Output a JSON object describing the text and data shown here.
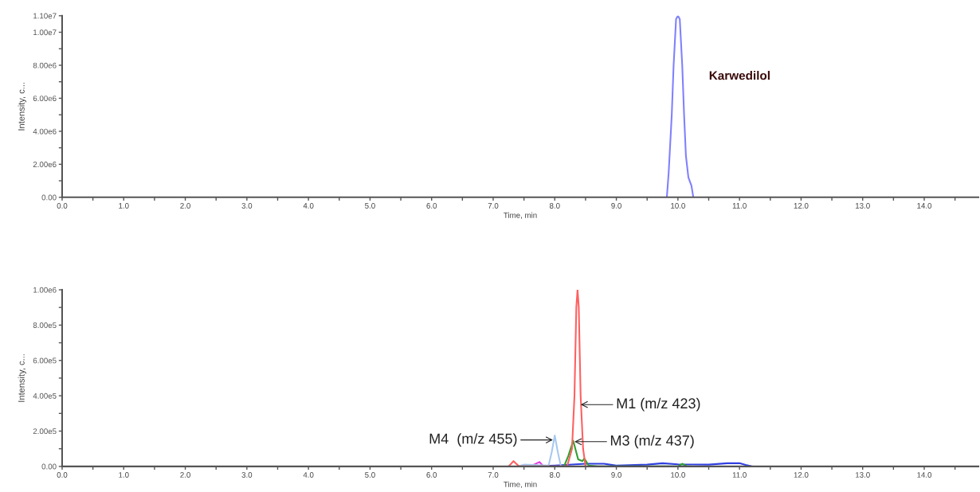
{
  "chart_data": [
    {
      "type": "line",
      "xlabel": "Time, min",
      "ylabel": "Intensity, c...",
      "xlim": [
        0,
        14.88
      ],
      "ylim": [
        0,
        11000000
      ],
      "xticks": [
        {
          "value": 0,
          "label": "0.0"
        },
        {
          "value": 0.5,
          "label": null
        },
        {
          "value": 1,
          "label": "1.0"
        },
        {
          "value": 1.5,
          "label": null
        },
        {
          "value": 2,
          "label": "2.0"
        },
        {
          "value": 2.5,
          "label": null
        },
        {
          "value": 3,
          "label": "3.0"
        },
        {
          "value": 3.5,
          "label": null
        },
        {
          "value": 4,
          "label": "4.0"
        },
        {
          "value": 4.5,
          "label": null
        },
        {
          "value": 5,
          "label": "5.0"
        },
        {
          "value": 5.5,
          "label": null
        },
        {
          "value": 6,
          "label": "6.0"
        },
        {
          "value": 6.5,
          "label": null
        },
        {
          "value": 7,
          "label": "7.0"
        },
        {
          "value": 7.5,
          "label": null
        },
        {
          "value": 8,
          "label": "8.0"
        },
        {
          "value": 8.5,
          "label": null
        },
        {
          "value": 9,
          "label": "9.0"
        },
        {
          "value": 9.5,
          "label": null
        },
        {
          "value": 10,
          "label": "10.0"
        },
        {
          "value": 10.5,
          "label": null
        },
        {
          "value": 11,
          "label": "11.0"
        },
        {
          "value": 11.5,
          "label": null
        },
        {
          "value": 12,
          "label": "12.0"
        },
        {
          "value": 12.5,
          "label": null
        },
        {
          "value": 13,
          "label": "13.0"
        },
        {
          "value": 13.5,
          "label": null
        },
        {
          "value": 14,
          "label": "14.0"
        },
        {
          "value": 14.5,
          "label": null
        }
      ],
      "yticks": [
        {
          "value": 0,
          "label": "0.00"
        },
        {
          "value": 1000000,
          "label": null
        },
        {
          "value": 2000000,
          "label": "2.00e6"
        },
        {
          "value": 3000000,
          "label": null
        },
        {
          "value": 4000000,
          "label": "4.00e6"
        },
        {
          "value": 5000000,
          "label": null
        },
        {
          "value": 6000000,
          "label": "6.00e6"
        },
        {
          "value": 7000000,
          "label": null
        },
        {
          "value": 8000000,
          "label": "8.00e6"
        },
        {
          "value": 9000000,
          "label": null
        },
        {
          "value": 10000000,
          "label": "1.00e7"
        },
        {
          "value": 11000000,
          "label": "1.10e7"
        }
      ],
      "series": [
        {
          "name": "Karwedilol",
          "color": "#8080ff",
          "x": [
            9.82,
            9.85,
            9.9,
            9.93,
            9.97,
            10.0,
            10.03,
            10.07,
            10.1,
            10.13,
            10.17,
            10.22,
            10.25
          ],
          "values": [
            0,
            1500000,
            5000000,
            8000000,
            10800000,
            11000000,
            10800000,
            8000000,
            5000000,
            2500000,
            1200000,
            700000,
            0
          ]
        }
      ]
    },
    {
      "type": "line",
      "xlabel": "Time, min",
      "ylabel": "Intensity, c...",
      "xlim": [
        0,
        14.88
      ],
      "ylim": [
        0,
        1000000
      ],
      "xticks": [
        {
          "value": 0,
          "label": "0.0"
        },
        {
          "value": 0.5,
          "label": null
        },
        {
          "value": 1,
          "label": "1.0"
        },
        {
          "value": 1.5,
          "label": null
        },
        {
          "value": 2,
          "label": "2.0"
        },
        {
          "value": 2.5,
          "label": null
        },
        {
          "value": 3,
          "label": "3.0"
        },
        {
          "value": 3.5,
          "label": null
        },
        {
          "value": 4,
          "label": "4.0"
        },
        {
          "value": 4.5,
          "label": null
        },
        {
          "value": 5,
          "label": "5.0"
        },
        {
          "value": 5.5,
          "label": null
        },
        {
          "value": 6,
          "label": "6.0"
        },
        {
          "value": 6.5,
          "label": null
        },
        {
          "value": 7,
          "label": "7.0"
        },
        {
          "value": 7.5,
          "label": null
        },
        {
          "value": 8,
          "label": "8.0"
        },
        {
          "value": 8.5,
          "label": null
        },
        {
          "value": 9,
          "label": "9.0"
        },
        {
          "value": 9.5,
          "label": null
        },
        {
          "value": 10,
          "label": "10.0"
        },
        {
          "value": 10.5,
          "label": null
        },
        {
          "value": 11,
          "label": "11.0"
        },
        {
          "value": 11.5,
          "label": null
        },
        {
          "value": 12,
          "label": "12.0"
        },
        {
          "value": 12.5,
          "label": null
        },
        {
          "value": 13,
          "label": "13.0"
        },
        {
          "value": 13.5,
          "label": null
        },
        {
          "value": 14,
          "label": "14.0"
        },
        {
          "value": 14.5,
          "label": null
        }
      ],
      "yticks": [
        {
          "value": 0,
          "label": "0.00"
        },
        {
          "value": 100000,
          "label": null
        },
        {
          "value": 200000,
          "label": "2.00e5"
        },
        {
          "value": 300000,
          "label": null
        },
        {
          "value": 400000,
          "label": "4.00e5"
        },
        {
          "value": 500000,
          "label": null
        },
        {
          "value": 600000,
          "label": "6.00e5"
        },
        {
          "value": 700000,
          "label": null
        },
        {
          "value": 800000,
          "label": "8.00e5"
        },
        {
          "value": 900000,
          "label": null
        },
        {
          "value": 1000000,
          "label": "1.00e6"
        }
      ],
      "series": [
        {
          "color": "#3040e0",
          "x": [
            7.6,
            8.0,
            8.5,
            8.8,
            9.0,
            9.5,
            9.75,
            10.0,
            10.5,
            10.8,
            11.0,
            11.1,
            11.2
          ],
          "values": [
            0,
            5000,
            15000,
            15000,
            5000,
            10000,
            18000,
            12000,
            10000,
            18000,
            18000,
            8000,
            0
          ]
        },
        {
          "color": "#e040e0",
          "x": [
            7.6,
            7.75,
            7.82,
            7.9
          ],
          "values": [
            0,
            25000,
            0,
            0
          ]
        },
        {
          "color": "#a8c8f0",
          "x": [
            7.4,
            7.5,
            7.9,
            7.95,
            8.0,
            8.05,
            8.1,
            8.2
          ],
          "values": [
            0,
            10000,
            5000,
            80000,
            175000,
            80000,
            0,
            0
          ]
        },
        {
          "color": "#30a030",
          "x": [
            8.15,
            8.22,
            8.3,
            8.38,
            8.45,
            8.48,
            8.55,
            8.7,
            10.0,
            10.07,
            10.15,
            10.2
          ],
          "values": [
            0,
            60000,
            145000,
            40000,
            30000,
            45000,
            5000,
            0,
            0,
            15000,
            0,
            0
          ]
        },
        {
          "color": "#ff6060",
          "x": [
            7.25,
            7.33,
            7.42,
            7.5,
            8.2,
            8.28,
            8.32,
            8.35,
            8.37,
            8.39,
            8.42,
            8.46,
            8.5
          ],
          "values": [
            0,
            30000,
            0,
            0,
            0,
            100000,
            400000,
            900000,
            1000000,
            900000,
            400000,
            100000,
            0
          ]
        }
      ],
      "annotations": [
        {
          "text": "M1 (m/z 423)",
          "x": 8.42,
          "y": 350000
        },
        {
          "text": "M3 (m/z 437)",
          "x": 8.32,
          "y": 140000
        },
        {
          "text": "M4  (m/z 455)",
          "x": 7.97,
          "y": 150000
        }
      ]
    }
  ]
}
